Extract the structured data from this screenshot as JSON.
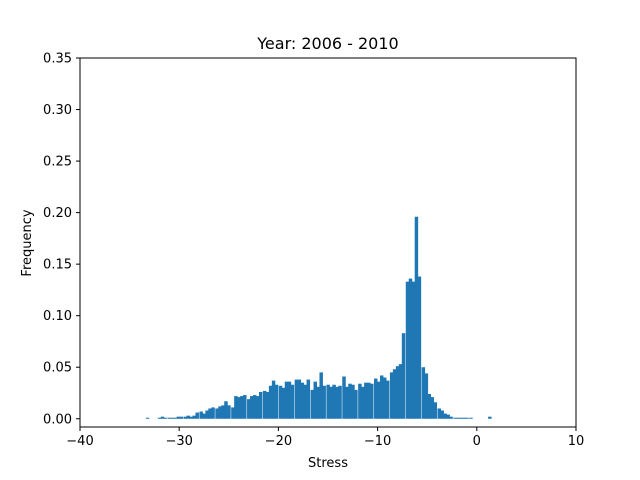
{
  "chart_data": {
    "type": "bar",
    "title": "Year: 2006 - 2010",
    "xlabel": "Stress",
    "ylabel": "Frequency",
    "xlim": [
      -40,
      10
    ],
    "ylim": [
      -0.008,
      0.35
    ],
    "xticks": [
      -40,
      -30,
      -20,
      -10,
      0,
      10
    ],
    "xtick_labels": [
      "−40",
      "−30",
      "−20",
      "−10",
      "0",
      "10"
    ],
    "yticks": [
      0.0,
      0.05,
      0.1,
      0.15,
      0.2,
      0.25,
      0.3,
      0.35
    ],
    "ytick_labels": [
      "0.00",
      "0.05",
      "0.10",
      "0.15",
      "0.20",
      "0.25",
      "0.30",
      "0.35"
    ],
    "grid": false,
    "color": "#1f77b4",
    "series": [
      {
        "bin_width": 0.32,
        "x": [
          -33.2,
          -32.0,
          -31.7,
          -31.4,
          -31.0,
          -30.7,
          -30.4,
          -30.1,
          -29.8,
          -29.4,
          -29.1,
          -28.8,
          -28.5,
          -28.2,
          -27.8,
          -27.5,
          -27.2,
          -26.9,
          -26.6,
          -26.2,
          -25.9,
          -25.6,
          -25.3,
          -25.0,
          -24.6,
          -24.3,
          -24.0,
          -23.7,
          -23.4,
          -23.0,
          -22.7,
          -22.4,
          -22.1,
          -21.8,
          -21.4,
          -21.1,
          -20.8,
          -20.5,
          -20.2,
          -19.8,
          -19.5,
          -19.2,
          -18.9,
          -18.6,
          -18.2,
          -17.9,
          -17.6,
          -17.3,
          -17.0,
          -16.6,
          -16.3,
          -16.0,
          -15.7,
          -15.4,
          -15.0,
          -14.7,
          -14.4,
          -14.1,
          -13.8,
          -13.4,
          -13.1,
          -12.8,
          -12.5,
          -12.2,
          -11.8,
          -11.5,
          -11.2,
          -10.9,
          -10.6,
          -10.2,
          -9.9,
          -9.6,
          -9.3,
          -9.0,
          -8.6,
          -8.3,
          -8.0,
          -7.7,
          -7.4,
          -7.0,
          -6.7,
          -6.4,
          -6.1,
          -5.8,
          -5.4,
          -5.1,
          -4.8,
          -4.5,
          -4.2,
          -3.8,
          -3.5,
          -3.2,
          -2.9,
          -2.6,
          -2.2,
          -1.9,
          -1.6,
          -1.3,
          -1.0,
          -0.6,
          1.3
        ],
        "values": [
          0.001,
          0.001,
          0.002,
          0.001,
          0.001,
          0.001,
          0.001,
          0.002,
          0.002,
          0.002,
          0.003,
          0.002,
          0.003,
          0.006,
          0.007,
          0.005,
          0.008,
          0.01,
          0.011,
          0.01,
          0.012,
          0.013,
          0.017,
          0.013,
          0.011,
          0.022,
          0.021,
          0.022,
          0.023,
          0.019,
          0.022,
          0.023,
          0.022,
          0.026,
          0.027,
          0.026,
          0.032,
          0.037,
          0.033,
          0.032,
          0.03,
          0.036,
          0.036,
          0.033,
          0.038,
          0.038,
          0.035,
          0.033,
          0.038,
          0.028,
          0.036,
          0.031,
          0.045,
          0.032,
          0.033,
          0.031,
          0.033,
          0.031,
          0.032,
          0.041,
          0.031,
          0.034,
          0.033,
          0.028,
          0.034,
          0.031,
          0.035,
          0.035,
          0.034,
          0.039,
          0.036,
          0.042,
          0.04,
          0.037,
          0.045,
          0.048,
          0.051,
          0.053,
          0.083,
          0.133,
          0.136,
          0.133,
          0.196,
          0.138,
          0.05,
          0.044,
          0.024,
          0.021,
          0.016,
          0.01,
          0.008,
          0.005,
          0.004,
          0.002,
          0.001,
          0.001,
          0.001,
          0.001,
          0.001,
          0.001,
          0.002
        ]
      }
    ]
  }
}
